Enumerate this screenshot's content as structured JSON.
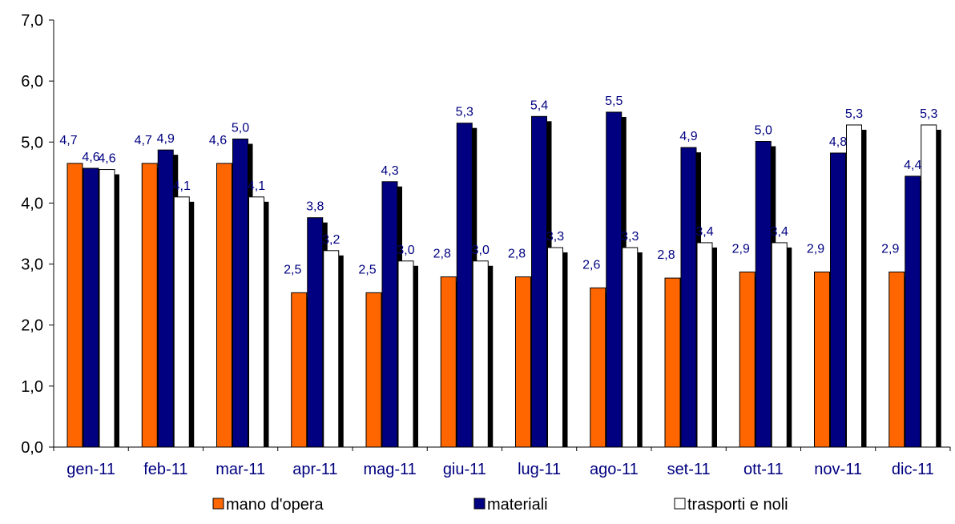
{
  "chart_data": {
    "type": "bar",
    "categories": [
      "gen-11",
      "feb-11",
      "mar-11",
      "apr-11",
      "mag-11",
      "giu-11",
      "lug-11",
      "ago-11",
      "set-11",
      "ott-11",
      "nov-11",
      "dic-11"
    ],
    "series": [
      {
        "name": "mano d'opera",
        "color": "#FF6600",
        "values": [
          4.65,
          4.65,
          4.65,
          2.53,
          2.53,
          2.79,
          2.79,
          2.61,
          2.77,
          2.87,
          2.87,
          2.87
        ],
        "labels": [
          "4,7",
          "4,7",
          "4,6",
          "2,5",
          "2,5",
          "2,8",
          "2,8",
          "2,6",
          "2,8",
          "2,9",
          "2,9",
          "2,9"
        ]
      },
      {
        "name": "materiali",
        "color": "#000080",
        "values": [
          4.57,
          4.87,
          5.05,
          3.76,
          4.35,
          5.31,
          5.42,
          5.49,
          4.91,
          5.01,
          4.82,
          4.44
        ],
        "labels": [
          "4,6",
          "4,9",
          "5,0",
          "3,8",
          "4,3",
          "5,3",
          "5,4",
          "5,5",
          "4,9",
          "5,0",
          "4,8",
          "4,4"
        ]
      },
      {
        "name": "trasporti e noli",
        "color": "#FFFFFF",
        "values": [
          4.55,
          4.1,
          4.1,
          3.22,
          3.05,
          3.05,
          3.27,
          3.27,
          3.35,
          3.35,
          5.28,
          5.28
        ],
        "labels": [
          "4,6",
          "4,1",
          "4,1",
          "3,2",
          "3,0",
          "3,0",
          "3,3",
          "3,3",
          "3,4",
          "3,4",
          "5,3",
          "5,3"
        ]
      }
    ],
    "ylim": [
      0,
      7
    ],
    "yticks": [
      "0,0",
      "1,0",
      "2,0",
      "3,0",
      "4,0",
      "5,0",
      "6,0",
      "7,0"
    ],
    "grid": false,
    "legend_position": "bottom",
    "title": "",
    "xlabel": "",
    "ylabel": ""
  }
}
